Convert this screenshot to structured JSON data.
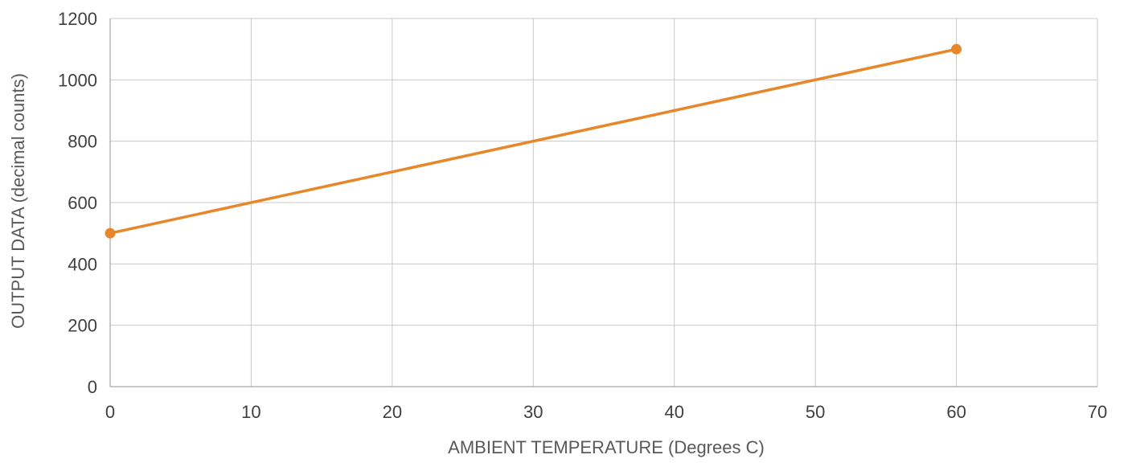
{
  "chart_data": {
    "type": "line",
    "title": "",
    "xlabel": "AMBIENT TEMPERATURE (Degrees C)",
    "ylabel": "OUTPUT DATA (decimal counts)",
    "xlim": [
      0,
      70
    ],
    "ylim": [
      0,
      1200
    ],
    "xticks": [
      "0",
      "10",
      "20",
      "30",
      "40",
      "50",
      "60",
      "70"
    ],
    "yticks": [
      "0",
      "200",
      "400",
      "600",
      "800",
      "1000",
      "1200"
    ],
    "grid": true,
    "legend": "none",
    "series": [
      {
        "color": "#e8862a",
        "points": [
          {
            "x": 0,
            "y": 500
          },
          {
            "x": 60,
            "y": 1100
          }
        ]
      }
    ]
  }
}
